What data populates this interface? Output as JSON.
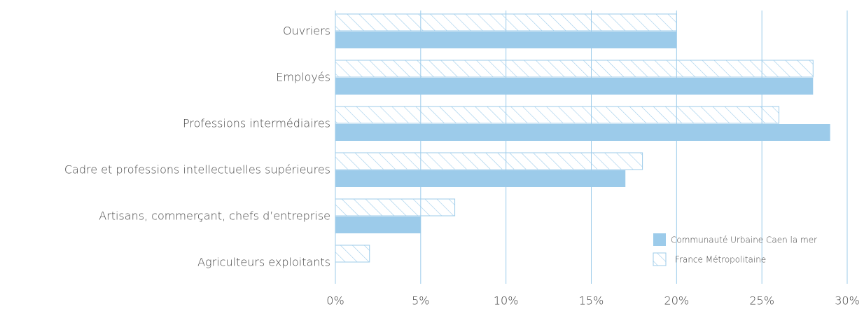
{
  "chart_data": {
    "type": "bar",
    "orientation": "horizontal",
    "categories": [
      "Ouvriers",
      "Employés",
      "Professions intermédiaires",
      "Cadre et professions intellectuelles supérieures",
      "Artisans, commerçant, chefs d’entreprise",
      "Agriculteurs exploitants"
    ],
    "series": [
      {
        "name": "Communauté Urbaine Caen la mer",
        "color": "#9ccbea",
        "fill": "solid",
        "values": [
          20,
          28,
          29,
          17,
          5,
          0
        ]
      },
      {
        "name": "France Métropolitaine",
        "color": "#9ccbea",
        "fill": "hatched",
        "values": [
          20,
          28,
          26,
          18,
          7,
          2
        ]
      }
    ],
    "xlim": [
      0,
      30
    ],
    "xticks": [
      {
        "value": 0,
        "label": "0%"
      },
      {
        "value": 5,
        "label": "5%"
      },
      {
        "value": 10,
        "label": "10%"
      },
      {
        "value": 15,
        "label": "15%"
      },
      {
        "value": 20,
        "label": "20%"
      },
      {
        "value": 25,
        "label": "25%"
      },
      {
        "value": 30,
        "label": "30%"
      }
    ],
    "grid": true,
    "legend": "lower right"
  }
}
